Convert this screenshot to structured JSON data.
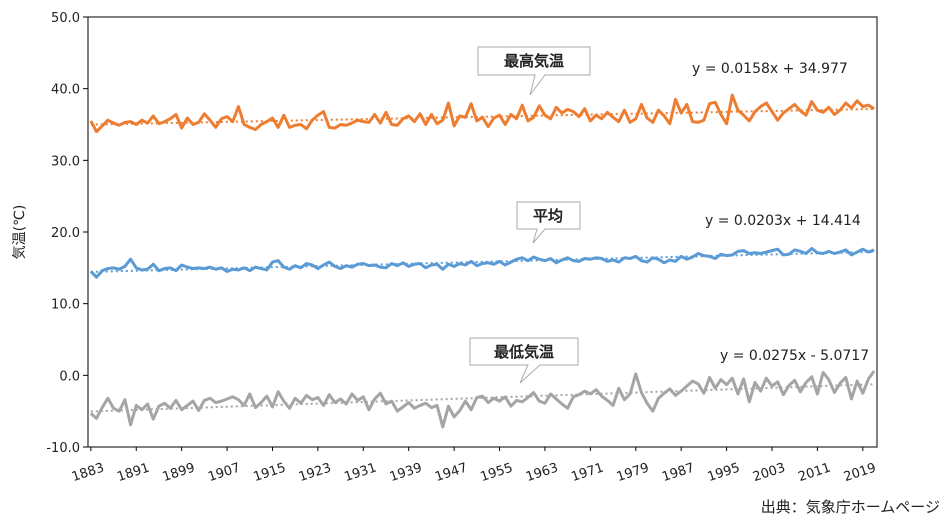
{
  "chart_data": {
    "type": "line",
    "y_label": "気温(℃)",
    "source": "出典：気象庁ホームページ",
    "xlim": [
      1882.5,
      2021.5
    ],
    "xticks": [
      1883,
      1891,
      1899,
      1907,
      1915,
      1923,
      1931,
      1939,
      1947,
      1955,
      1963,
      1971,
      1979,
      1987,
      1995,
      2003,
      2011,
      2019
    ],
    "ylim": [
      -10,
      50
    ],
    "yticks": [
      {
        "value": -10,
        "label": "-10.0"
      },
      {
        "value": 0,
        "label": "0.0"
      },
      {
        "value": 10,
        "label": "10.0"
      },
      {
        "value": 20,
        "label": "20.0"
      },
      {
        "value": 30,
        "label": "30.0"
      },
      {
        "value": 40,
        "label": "40.0"
      },
      {
        "value": 50,
        "label": "50.0"
      }
    ],
    "grid": false,
    "x": [
      1883,
      1884,
      1885,
      1886,
      1887,
      1888,
      1889,
      1890,
      1891,
      1892,
      1893,
      1894,
      1895,
      1896,
      1897,
      1898,
      1899,
      1900,
      1901,
      1902,
      1903,
      1904,
      1905,
      1906,
      1907,
      1908,
      1909,
      1910,
      1911,
      1912,
      1913,
      1914,
      1915,
      1916,
      1917,
      1918,
      1919,
      1920,
      1921,
      1922,
      1923,
      1924,
      1925,
      1926,
      1927,
      1928,
      1929,
      1930,
      1931,
      1932,
      1933,
      1934,
      1935,
      1936,
      1937,
      1938,
      1939,
      1940,
      1941,
      1942,
      1943,
      1944,
      1945,
      1946,
      1947,
      1948,
      1949,
      1950,
      1951,
      1952,
      1953,
      1954,
      1955,
      1956,
      1957,
      1958,
      1959,
      1960,
      1961,
      1962,
      1963,
      1964,
      1965,
      1966,
      1967,
      1968,
      1969,
      1970,
      1971,
      1972,
      1973,
      1974,
      1975,
      1976,
      1977,
      1978,
      1979,
      1980,
      1981,
      1982,
      1983,
      1984,
      1985,
      1986,
      1987,
      1988,
      1989,
      1990,
      1991,
      1992,
      1993,
      1994,
      1995,
      1996,
      1997,
      1998,
      1999,
      2000,
      2001,
      2002,
      2003,
      2004,
      2005,
      2006,
      2007,
      2008,
      2009,
      2010,
      2011,
      2012,
      2013,
      2014,
      2015,
      2016,
      2017,
      2018,
      2019,
      2020,
      2021
    ],
    "series": [
      {
        "name": "最高気温",
        "color": "#ED7D31",
        "trend_label": "y = 0.0158x + 34.977",
        "trend": {
          "x": [
            1883,
            2021
          ],
          "values": [
            34.99,
            37.17
          ]
        },
        "values": [
          35.5,
          34.0,
          34.8,
          35.6,
          35.2,
          34.9,
          35.3,
          35.4,
          35.0,
          35.6,
          35.2,
          36.2,
          35.1,
          35.4,
          35.8,
          36.4,
          34.5,
          35.9,
          35.0,
          35.3,
          36.5,
          35.6,
          34.6,
          35.8,
          36.1,
          35.4,
          37.5,
          35.0,
          34.6,
          34.3,
          35.0,
          35.4,
          35.9,
          34.6,
          36.3,
          34.6,
          34.9,
          35.0,
          34.4,
          35.6,
          36.3,
          36.8,
          34.6,
          34.5,
          35.0,
          34.9,
          35.2,
          35.6,
          35.4,
          35.3,
          36.4,
          35.2,
          36.7,
          35.0,
          34.9,
          35.8,
          36.2,
          35.4,
          36.5,
          35.0,
          36.4,
          35.1,
          35.6,
          38.0,
          34.8,
          36.2,
          36.0,
          37.9,
          35.5,
          36.0,
          34.7,
          35.9,
          36.3,
          35.0,
          36.4,
          35.8,
          37.7,
          35.5,
          36.0,
          37.6,
          36.3,
          35.8,
          37.4,
          36.6,
          37.1,
          36.8,
          36.1,
          37.2,
          35.5,
          36.3,
          35.8,
          36.7,
          36.0,
          35.4,
          37.0,
          35.3,
          35.8,
          37.8,
          35.9,
          35.3,
          37.0,
          36.2,
          35.1,
          38.5,
          36.6,
          37.8,
          35.4,
          35.3,
          35.6,
          37.9,
          38.1,
          36.4,
          35.1,
          39.1,
          37.0,
          36.3,
          35.5,
          36.8,
          37.5,
          38.0,
          36.8,
          35.6,
          36.6,
          37.2,
          37.8,
          36.9,
          36.3,
          38.2,
          37.0,
          36.7,
          37.4,
          36.4,
          37.0,
          38.0,
          37.3,
          38.3,
          37.5,
          37.7,
          37.2
        ]
      },
      {
        "name": "平均",
        "color": "#5B9BD5",
        "trend_label": "y = 0.0203x + 14.414",
        "trend": {
          "x": [
            1883,
            2021
          ],
          "values": [
            14.43,
            17.24
          ]
        },
        "values": [
          14.5,
          13.7,
          14.6,
          14.9,
          15.0,
          14.8,
          15.2,
          16.2,
          15.0,
          14.7,
          14.8,
          15.5,
          14.6,
          14.9,
          15.0,
          14.6,
          15.4,
          15.1,
          14.9,
          15.0,
          14.9,
          15.1,
          14.8,
          15.0,
          14.5,
          14.8,
          14.7,
          15.0,
          14.6,
          15.1,
          14.9,
          14.7,
          15.8,
          16.0,
          15.1,
          14.8,
          15.3,
          15.0,
          15.6,
          15.4,
          14.9,
          15.4,
          15.8,
          15.2,
          14.9,
          15.3,
          15.1,
          15.5,
          15.6,
          15.3,
          15.4,
          15.1,
          15.0,
          15.6,
          15.3,
          15.7,
          15.2,
          15.5,
          15.6,
          15.0,
          15.4,
          15.5,
          14.8,
          15.5,
          15.2,
          15.6,
          15.4,
          15.9,
          15.3,
          15.6,
          15.7,
          15.5,
          15.9,
          15.4,
          15.8,
          16.2,
          16.4,
          16.0,
          16.5,
          16.2,
          16.0,
          16.3,
          15.7,
          16.1,
          16.4,
          16.0,
          15.9,
          16.3,
          16.2,
          16.4,
          16.3,
          15.9,
          16.1,
          15.8,
          16.4,
          16.3,
          16.6,
          16.0,
          15.8,
          16.4,
          16.2,
          15.7,
          16.1,
          15.9,
          16.6,
          16.2,
          16.5,
          17.0,
          16.7,
          16.6,
          16.3,
          16.9,
          16.7,
          16.8,
          17.3,
          17.4,
          17.0,
          17.1,
          17.0,
          17.2,
          17.4,
          17.6,
          16.8,
          16.9,
          17.5,
          17.3,
          17.0,
          17.7,
          17.1,
          17.0,
          17.3,
          17.0,
          17.2,
          17.5,
          16.8,
          17.2,
          17.6,
          17.2,
          17.5
        ]
      },
      {
        "name": "最低気温",
        "color": "#A5A5A5",
        "trend_label": "y = 0.0275x - 5.0717",
        "trend": {
          "x": [
            1883,
            2021
          ],
          "values": [
            -5.04,
            -1.25
          ]
        },
        "values": [
          -5.3,
          -6.0,
          -4.5,
          -3.2,
          -4.6,
          -5.0,
          -3.4,
          -6.9,
          -4.2,
          -4.8,
          -4.0,
          -6.1,
          -4.3,
          -3.9,
          -4.6,
          -3.5,
          -4.8,
          -4.2,
          -3.6,
          -4.9,
          -3.5,
          -3.2,
          -3.8,
          -3.6,
          -3.3,
          -3.0,
          -3.4,
          -4.2,
          -2.6,
          -4.5,
          -3.8,
          -2.9,
          -4.4,
          -2.3,
          -3.6,
          -4.6,
          -3.2,
          -3.9,
          -2.8,
          -3.4,
          -3.1,
          -4.2,
          -2.7,
          -3.8,
          -3.3,
          -4.0,
          -2.6,
          -3.5,
          -3.0,
          -4.8,
          -3.3,
          -2.5,
          -4.0,
          -3.6,
          -5.0,
          -4.4,
          -3.8,
          -4.6,
          -4.2,
          -3.9,
          -4.5,
          -4.2,
          -7.2,
          -4.3,
          -5.8,
          -4.9,
          -3.6,
          -4.8,
          -3.1,
          -2.9,
          -3.8,
          -3.2,
          -3.6,
          -3.0,
          -4.3,
          -3.5,
          -3.7,
          -3.1,
          -2.4,
          -3.6,
          -3.9,
          -2.6,
          -3.3,
          -4.0,
          -4.6,
          -3.0,
          -2.7,
          -2.2,
          -2.6,
          -2.0,
          -2.9,
          -3.5,
          -4.2,
          -1.8,
          -3.4,
          -2.6,
          0.2,
          -2.4,
          -3.9,
          -5.0,
          -3.2,
          -2.5,
          -1.9,
          -2.8,
          -2.2,
          -1.5,
          -0.8,
          -1.2,
          -2.5,
          -0.3,
          -1.8,
          -0.6,
          -1.3,
          -0.4,
          -2.6,
          -0.5,
          -3.7,
          -1.0,
          -2.2,
          -0.4,
          -1.5,
          -0.9,
          -2.7,
          -1.4,
          -0.7,
          -2.3,
          -1.0,
          -0.2,
          -2.6,
          0.4,
          -0.6,
          -2.4,
          -1.1,
          -0.3,
          -3.3,
          -0.8,
          -2.5,
          -0.5,
          0.6
        ]
      }
    ]
  }
}
